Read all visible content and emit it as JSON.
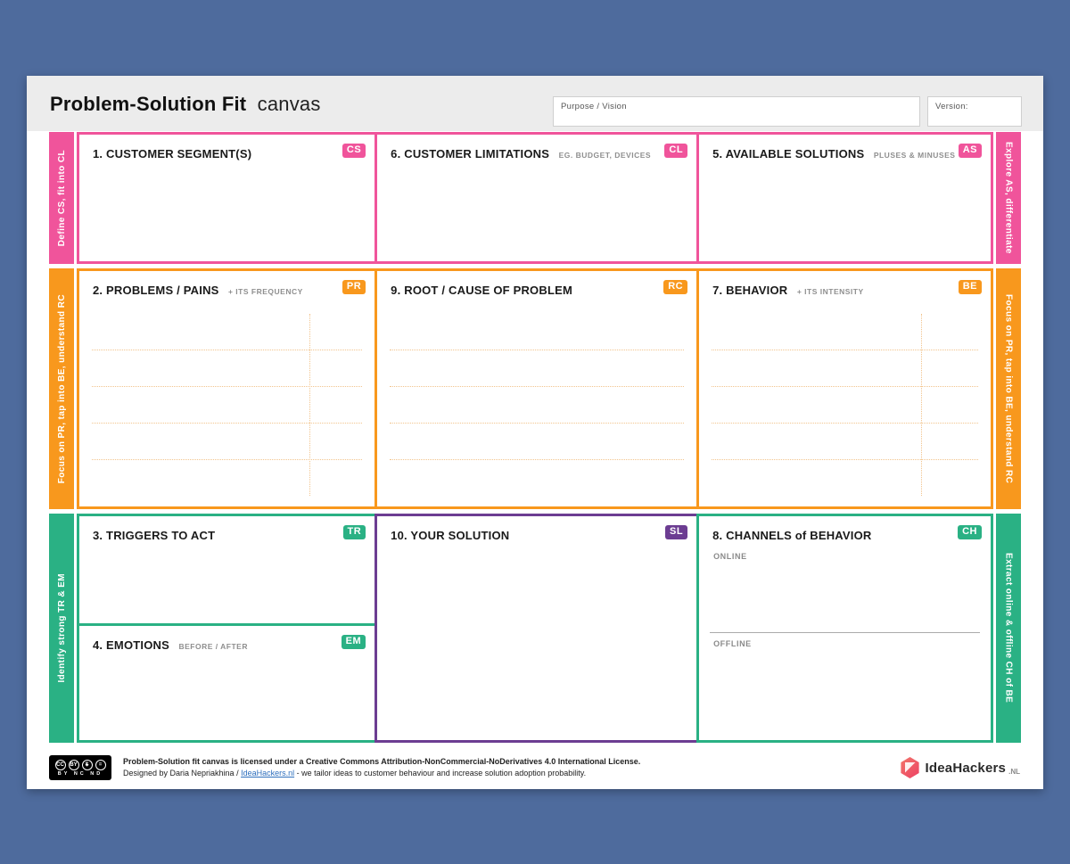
{
  "header": {
    "title_bold": "Problem-Solution Fit",
    "title_light": "canvas",
    "purpose_label": "Purpose / Vision",
    "version_label": "Version:"
  },
  "cells": {
    "customer_segments": {
      "title": "1. CUSTOMER SEGMENT(S)",
      "badge": "CS"
    },
    "customer_limitations": {
      "title": "6. CUSTOMER LIMITATIONS",
      "caption": "EG. BUDGET, DEVICES",
      "badge": "CL"
    },
    "available_solutions": {
      "title": "5. AVAILABLE SOLUTIONS",
      "caption": "PLUSES & MINUSES",
      "badge": "AS"
    },
    "problems_pains": {
      "title": "2. PROBLEMS / PAINS",
      "caption": "+ ITS FREQUENCY",
      "badge": "PR"
    },
    "root_cause": {
      "title": "9. ROOT / CAUSE OF PROBLEM",
      "badge": "RC"
    },
    "behavior": {
      "title": "7. BEHAVIOR",
      "caption": "+ ITS INTENSITY",
      "badge": "BE"
    },
    "triggers": {
      "title": "3. TRIGGERS TO ACT",
      "badge": "TR"
    },
    "emotions": {
      "title": "4. EMOTIONS",
      "caption": "BEFORE / AFTER",
      "badge": "EM"
    },
    "your_solution": {
      "title": "10. YOUR SOLUTION",
      "badge": "SL"
    },
    "channels": {
      "title": "8. CHANNELS of BEHAVIOR",
      "badge": "CH",
      "online_label": "ONLINE",
      "offline_label": "OFFLINE"
    }
  },
  "sidebars": {
    "row1_left": "Define CS, fit into CL",
    "row1_right": "Explore AS, differentiate",
    "row2_left": "Focus on PR, tap into BE, understand RC",
    "row2_right": "Focus on PR, tap into BE, understand RC",
    "row3_left": "Identify strong TR & EM",
    "row3_right": "Extract online & offline CH of BE"
  },
  "footer": {
    "license_line1": "Problem-Solution fit canvas is licensed under a Creative Commons Attribution-NonCommercial-NoDerivatives 4.0 International License.",
    "license_line2_prefix": "Designed by Daria Nepriakhina / ",
    "license_link": "IdeaHackers.nl",
    "license_line2_suffix": " - we tailor ideas to customer behaviour and increase solution adoption probability.",
    "cc_icons": {
      "cc": "CC",
      "by": "BY",
      "nc": "$",
      "nd": "="
    },
    "cc_labels": "BY NC ND",
    "brand": "IdeaHackers",
    "brand_suffix": ".NL"
  },
  "colors": {
    "pink": "#F0549B",
    "orange": "#F8981D",
    "green": "#2AB184",
    "purple": "#6C3D92",
    "background": "#4E6B9D"
  }
}
